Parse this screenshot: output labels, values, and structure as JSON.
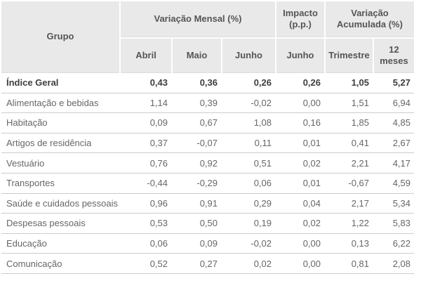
{
  "table": {
    "header": {
      "grupo": "Grupo",
      "variacao_mensal": "Variação Mensal (%)",
      "impacto": "Impacto (p.p.)",
      "variacao_acumulada": "Variação Acumulada (%)",
      "sub": {
        "abril": "Abril",
        "maio": "Maio",
        "junho": "Junho",
        "junho_impacto": "Junho",
        "trimestre": "Trimestre",
        "doze_meses": "12 meses"
      }
    },
    "rows": [
      {
        "group": "Índice Geral",
        "bold": true,
        "values": [
          "0,43",
          "0,36",
          "0,26",
          "0,26",
          "1,05",
          "5,27"
        ]
      },
      {
        "group": "Alimentação e bebidas",
        "bold": false,
        "values": [
          "1,14",
          "0,39",
          "-0,02",
          "0,00",
          "1,51",
          "6,94"
        ]
      },
      {
        "group": "Habitação",
        "bold": false,
        "values": [
          "0,09",
          "0,67",
          "1,08",
          "0,16",
          "1,85",
          "4,85"
        ]
      },
      {
        "group": "Artigos de residência",
        "bold": false,
        "values": [
          "0,37",
          "-0,07",
          "0,11",
          "0,01",
          "0,41",
          "2,67"
        ]
      },
      {
        "group": "Vestuário",
        "bold": false,
        "values": [
          "0,76",
          "0,92",
          "0,51",
          "0,02",
          "2,21",
          "4,17"
        ]
      },
      {
        "group": "Transportes",
        "bold": false,
        "values": [
          "-0,44",
          "-0,29",
          "0,06",
          "0,01",
          "-0,67",
          "4,59"
        ]
      },
      {
        "group": "Saúde e cuidados pessoais",
        "bold": false,
        "values": [
          "0,96",
          "0,91",
          "0,29",
          "0,04",
          "2,17",
          "5,34"
        ]
      },
      {
        "group": "Despesas pessoais",
        "bold": false,
        "values": [
          "0,53",
          "0,50",
          "0,19",
          "0,02",
          "1,22",
          "5,83"
        ]
      },
      {
        "group": "Educação",
        "bold": false,
        "values": [
          "0,06",
          "0,09",
          "-0,02",
          "0,00",
          "0,13",
          "6,22"
        ]
      },
      {
        "group": "Comunicação",
        "bold": false,
        "values": [
          "0,52",
          "0,27",
          "0,02",
          "0,00",
          "0,81",
          "2,08"
        ]
      }
    ]
  },
  "chart_data": {
    "type": "table",
    "column_groups": [
      {
        "label": "Grupo",
        "span": 1
      },
      {
        "label": "Variação Mensal (%)",
        "span": 3
      },
      {
        "label": "Impacto (p.p.)",
        "span": 1
      },
      {
        "label": "Variação Acumulada (%)",
        "span": 2
      }
    ],
    "columns": [
      "Grupo",
      "Abril",
      "Maio",
      "Junho",
      "Junho",
      "Trimestre",
      "12 meses"
    ],
    "rows": [
      {
        "group": "Índice Geral",
        "abril": 0.43,
        "maio": 0.36,
        "junho": 0.26,
        "impacto_junho": 0.26,
        "trimestre": 1.05,
        "doze_meses": 5.27
      },
      {
        "group": "Alimentação e bebidas",
        "abril": 1.14,
        "maio": 0.39,
        "junho": -0.02,
        "impacto_junho": 0.0,
        "trimestre": 1.51,
        "doze_meses": 6.94
      },
      {
        "group": "Habitação",
        "abril": 0.09,
        "maio": 0.67,
        "junho": 1.08,
        "impacto_junho": 0.16,
        "trimestre": 1.85,
        "doze_meses": 4.85
      },
      {
        "group": "Artigos de residência",
        "abril": 0.37,
        "maio": -0.07,
        "junho": 0.11,
        "impacto_junho": 0.01,
        "trimestre": 0.41,
        "doze_meses": 2.67
      },
      {
        "group": "Vestuário",
        "abril": 0.76,
        "maio": 0.92,
        "junho": 0.51,
        "impacto_junho": 0.02,
        "trimestre": 2.21,
        "doze_meses": 4.17
      },
      {
        "group": "Transportes",
        "abril": -0.44,
        "maio": -0.29,
        "junho": 0.06,
        "impacto_junho": 0.01,
        "trimestre": -0.67,
        "doze_meses": 4.59
      },
      {
        "group": "Saúde e cuidados pessoais",
        "abril": 0.96,
        "maio": 0.91,
        "junho": 0.29,
        "impacto_junho": 0.04,
        "trimestre": 2.17,
        "doze_meses": 5.34
      },
      {
        "group": "Despesas pessoais",
        "abril": 0.53,
        "maio": 0.5,
        "junho": 0.19,
        "impacto_junho": 0.02,
        "trimestre": 1.22,
        "doze_meses": 5.83
      },
      {
        "group": "Educação",
        "abril": 0.06,
        "maio": 0.09,
        "junho": -0.02,
        "impacto_junho": 0.0,
        "trimestre": 0.13,
        "doze_meses": 6.22
      },
      {
        "group": "Comunicação",
        "abril": 0.52,
        "maio": 0.27,
        "junho": 0.02,
        "impacto_junho": 0.0,
        "trimestre": 0.81,
        "doze_meses": 2.08
      }
    ],
    "decimal_separator": ",",
    "bold_rows": [
      "Índice Geral"
    ]
  },
  "colors": {
    "header_bg": "#e9e9e9",
    "header_text": "#555555",
    "body_text": "#666666",
    "bold_row_text": "#3d3d3d",
    "separator": "#cccccc",
    "background": "#ffffff"
  }
}
